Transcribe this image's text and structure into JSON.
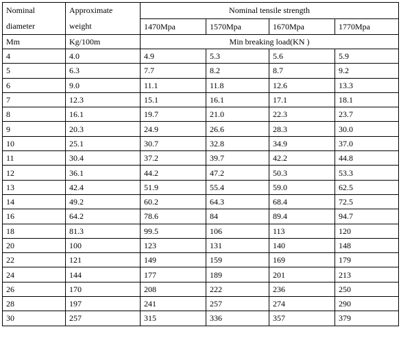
{
  "table": {
    "header": {
      "diameter": [
        "Nominal",
        "diameter"
      ],
      "weight": [
        "Approximate",
        "weight"
      ],
      "strength": "Nominal tensile strength",
      "grades": [
        "1470Mpa",
        "1570Mpa",
        "1670Mpa",
        "1770Mpa"
      ],
      "units": {
        "diameter": "Mm",
        "weight": "Kg/100m",
        "load": "Min breaking load(KN )"
      }
    },
    "rows": [
      [
        "4",
        "4.0",
        "4.9",
        "5.3",
        "5.6",
        "5.9"
      ],
      [
        "5",
        "6.3",
        "7.7",
        "8.2",
        "8.7",
        "9.2"
      ],
      [
        "6",
        "9.0",
        "11.1",
        "11.8",
        "12.6",
        "13.3"
      ],
      [
        "7",
        "12.3",
        "15.1",
        "16.1",
        "17.1",
        "18.1"
      ],
      [
        "8",
        "16.1",
        "19.7",
        "21.0",
        "22.3",
        "23.7"
      ],
      [
        "9",
        "20.3",
        "24.9",
        "26.6",
        "28.3",
        "30.0"
      ],
      [
        "10",
        "25.1",
        "30.7",
        "32.8",
        "34.9",
        "37.0"
      ],
      [
        "11",
        "30.4",
        "37.2",
        "39.7",
        "42.2",
        "44.8"
      ],
      [
        "12",
        "36.1",
        "44.2",
        "47.2",
        "50.3",
        "53.3"
      ],
      [
        "13",
        "42.4",
        "51.9",
        "55.4",
        "59.0",
        "62.5"
      ],
      [
        "14",
        "49.2",
        "60.2",
        "64.3",
        "68.4",
        "72.5"
      ],
      [
        "16",
        "64.2",
        "78.6",
        "84",
        "89.4",
        "94.7"
      ],
      [
        "18",
        "81.3",
        "99.5",
        "106",
        "113",
        "120"
      ],
      [
        "20",
        "100",
        "123",
        "131",
        "140",
        "148"
      ],
      [
        "22",
        "121",
        "149",
        "159",
        "169",
        "179"
      ],
      [
        "24",
        "144",
        "177",
        "189",
        "201",
        "213"
      ],
      [
        "26",
        "170",
        "208",
        "222",
        "236",
        "250"
      ],
      [
        "28",
        "197",
        "241",
        "257",
        "274",
        "290"
      ],
      [
        "30",
        "257",
        "315",
        "336",
        "357",
        "379"
      ]
    ]
  }
}
